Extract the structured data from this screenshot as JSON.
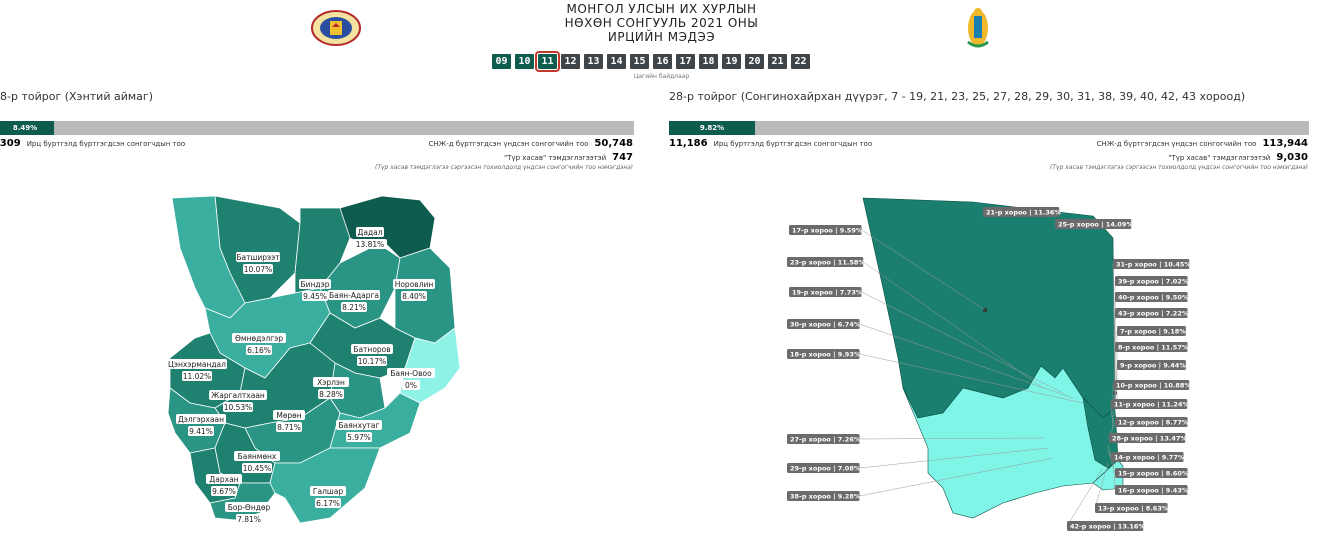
{
  "header": {
    "title_lines": [
      "МОНГОЛ УЛСЫН ИХ ХУРЛЫН",
      "НӨХӨН СОНГУУЛЬ 2021 ОНЫ",
      "ИРЦИЙН МЭДЭЭ"
    ],
    "hours": [
      "09",
      "10",
      "11",
      "12",
      "13",
      "14",
      "15",
      "16",
      "17",
      "18",
      "19",
      "20",
      "21",
      "22"
    ],
    "active_hour": "11",
    "hour_caption": "Цагийн байдлаар"
  },
  "left": {
    "title": "8-р тойрог (Хэнтий аймаг)",
    "turnout_pct": "8.49%",
    "turnout_value": 8.49,
    "voted": ",309",
    "voted_label": "Ирц буртгэлд бүртгэгдсэн сонгогчдын тоо",
    "registered_label": "СНЖ-д бүртгэгдсэн үндсэн сонгогчийн тоо",
    "registered": "50,748",
    "tur_label": "\"Түр хасав\" тэмдэглэгээтэй",
    "tur": "747",
    "note": "(Түр хасав тэмдэглэгээ сэргээсэн тохиолдолд үндсэн сонгогчийн тоо нэмэгдэнэ)",
    "regions": [
      {
        "name": "Дадал",
        "pct": "13.81%"
      },
      {
        "name": "Батширээт",
        "pct": "10.07%"
      },
      {
        "name": "Биндэр",
        "pct": "9.45%"
      },
      {
        "name": "Баян-Адарга",
        "pct": "8.21%"
      },
      {
        "name": "Норовлин",
        "pct": "8.40%"
      },
      {
        "name": "Өмнөдэлгэр",
        "pct": "6.16%"
      },
      {
        "name": "Батноров",
        "pct": "10.17%"
      },
      {
        "name": "Баян-Овоо",
        "pct": "0%"
      },
      {
        "name": "Цэнхэрмандал",
        "pct": "11.02%"
      },
      {
        "name": "Жаргалтхаан",
        "pct": "10.53%"
      },
      {
        "name": "Хэрлэн",
        "pct": "8.28%"
      },
      {
        "name": "Дэлгэрхаан",
        "pct": "9.41%"
      },
      {
        "name": "Мөрөн",
        "pct": "8.71%"
      },
      {
        "name": "Баянхутаг",
        "pct": "5.97%"
      },
      {
        "name": "Баянмөнх",
        "pct": "10.45%"
      },
      {
        "name": "Дархан",
        "pct": "9.67%"
      },
      {
        "name": "Бор-Өндөр",
        "pct": "7.81%"
      },
      {
        "name": "Галшар",
        "pct": "6.17%"
      }
    ]
  },
  "right": {
    "title": "28-р тойрог (Сонгинохайрхан дүүрэг, 7 - 19, 21, 23, 25, 27, 28, 29, 30, 31, 38, 39, 40, 42, 43 хороод)",
    "turnout_pct": "9.82%",
    "turnout_value": 9.82,
    "voted": "11,186",
    "voted_label": "Ирц буртгэлд бүртгэгдсэн сонгогчдын тоо",
    "registered_label": "СНЖ-д бүртгэгдсэн үндсэн сонгогчийн тоо",
    "registered": "113,944",
    "tur_label": "\"Түр хасав\" тэмдэглэгээтэй",
    "tur": "9,030",
    "note": "(Түр хасав тэмдэглэгээ сэргээсэн тохиолдолд үндсэн сонгогчийн тоо нэмэгдэнэ)",
    "tags": [
      "21-р хороо | 11.36%",
      "25-р хороо | 14.09%",
      "17-р хороо | 9.59%",
      "23-р хороо | 11.58%",
      "19-р хороо | 7.73%",
      "30-р хороо | 6.74%",
      "18-р хороо | 9.93%",
      "31-р хороо | 10.45%",
      "39-р хороо | 7.02%",
      "40-р хороо | 9.50%",
      "43-р хороо | 7.22%",
      "7-р хороо | 9.18%",
      "8-р хороо | 11.57%",
      "9-р хороо | 9.44%",
      "10-р хороо | 10.88%",
      "11-р хороо | 11.24%",
      "12-р хороо | 8.77%",
      "28-р хороо | 13.47%",
      "14-р хороо | 9.77%",
      "15-р хороо | 8.60%",
      "16-р хороо | 9.43%",
      "27-р хороо | 7.26%",
      "29-р хороо | 7.08%",
      "38-р хороо | 9.28%",
      "13-р хороо | 8.63%",
      "42-р хороо | 13.16%"
    ]
  }
}
